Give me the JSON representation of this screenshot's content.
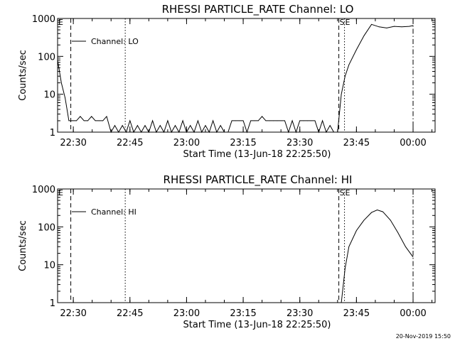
{
  "chart_data": [
    {
      "type": "line",
      "title": "RHESSI PARTICLE_RATE Channel: LO",
      "xlabel": "Start Time (13-Jun-18 22:25:50)",
      "ylabel": "Counts/sec",
      "y_scale": "log",
      "ylim": [
        1,
        1000
      ],
      "xlim": [
        "22:25:50",
        "00:05:50"
      ],
      "x_ticks": [
        "22:30",
        "22:45",
        "23:00",
        "23:15",
        "23:30",
        "23:45",
        "00:00"
      ],
      "y_ticks": [
        "1",
        "10",
        "100",
        "1000"
      ],
      "legend": {
        "entries": [
          "Channel: LO"
        ],
        "placement": "top-left"
      },
      "markers": [
        {
          "label": "E",
          "time": "22:25:50",
          "style": "solid"
        },
        {
          "label": "",
          "time": "22:29:20",
          "style": "dashed"
        },
        {
          "label": "",
          "time": "22:43:45",
          "style": "dotted"
        },
        {
          "label": "S",
          "time": "23:40:20",
          "style": "dashed"
        },
        {
          "label": "E",
          "time": "23:41:50",
          "style": "dotted"
        },
        {
          "label": "",
          "time": "00:00:00",
          "style": "dashdot"
        }
      ],
      "series": [
        {
          "name": "Channel: LO",
          "x": [
            "22:25:50",
            "22:26:50",
            "22:27:50",
            "22:28:50",
            "22:29:50",
            "22:30:50",
            "22:31:50",
            "22:32:50",
            "22:33:50",
            "22:34:50",
            "22:35:50",
            "22:36:50",
            "22:37:50",
            "22:38:50",
            "22:40:00",
            "22:41:00",
            "22:42:00",
            "22:43:00",
            "22:44:00",
            "22:45:00",
            "22:46:00",
            "22:47:00",
            "22:48:00",
            "22:49:00",
            "22:50:00",
            "22:51:00",
            "22:52:00",
            "22:53:00",
            "22:54:00",
            "22:55:00",
            "22:56:00",
            "22:57:00",
            "22:58:00",
            "22:59:00",
            "23:00:00",
            "23:01:00",
            "23:02:00",
            "23:03:00",
            "23:04:00",
            "23:05:00",
            "23:06:00",
            "23:07:00",
            "23:08:00",
            "23:09:00",
            "23:10:00",
            "23:11:00",
            "23:12:00",
            "23:13:00",
            "23:14:00",
            "23:15:00",
            "23:16:00",
            "23:17:00",
            "23:18:00",
            "23:19:00",
            "23:20:00",
            "23:21:00",
            "23:22:00",
            "23:23:00",
            "23:24:00",
            "23:25:00",
            "23:26:00",
            "23:27:00",
            "23:28:00",
            "23:29:00",
            "23:30:00",
            "23:31:00",
            "23:32:00",
            "23:33:00",
            "23:34:00",
            "23:35:00",
            "23:36:00",
            "23:37:00",
            "23:38:00",
            "23:39:00",
            "23:40:00",
            "23:41:00",
            "23:42:00",
            "23:43:00",
            "23:45:00",
            "23:47:00",
            "23:49:00",
            "23:51:00",
            "23:53:00",
            "23:55:00",
            "23:57:00",
            "23:59:00",
            "00:00:00"
          ],
          "values": [
            80,
            20,
            8,
            2,
            2,
            2,
            2.6,
            2,
            2,
            2.6,
            2,
            2,
            2,
            2.6,
            1,
            1.5,
            1,
            1.5,
            1,
            2,
            1,
            1.5,
            1,
            1.5,
            1,
            2,
            1,
            1.5,
            1,
            2,
            1,
            1.5,
            1,
            2,
            1,
            1.5,
            1,
            2,
            1,
            1.5,
            1,
            2,
            1,
            1.5,
            1,
            1,
            2,
            2,
            2,
            2,
            1,
            2,
            2,
            2,
            2.6,
            2,
            2,
            2,
            2,
            2,
            2,
            1,
            2,
            1,
            2,
            2,
            2,
            2,
            2,
            1,
            2,
            1,
            1.5,
            1,
            1,
            10,
            30,
            60,
            150,
            350,
            700,
            600,
            560,
            620,
            600,
            620,
            650
          ]
        }
      ]
    },
    {
      "type": "line",
      "title": "RHESSI PARTICLE_RATE Channel: HI",
      "xlabel": "Start Time (13-Jun-18 22:25:50)",
      "ylabel": "Counts/sec",
      "y_scale": "log",
      "ylim": [
        1,
        1000
      ],
      "xlim": [
        "22:25:50",
        "00:05:50"
      ],
      "x_ticks": [
        "22:30",
        "22:45",
        "23:00",
        "23:15",
        "23:30",
        "23:45",
        "00:00"
      ],
      "y_ticks": [
        "1",
        "10",
        "100",
        "1000"
      ],
      "legend": {
        "entries": [
          "Channel: HI"
        ],
        "placement": "top-left"
      },
      "markers": [
        {
          "label": "E",
          "time": "22:25:50",
          "style": "solid"
        },
        {
          "label": "",
          "time": "22:29:20",
          "style": "dashed"
        },
        {
          "label": "",
          "time": "22:43:45",
          "style": "dotted"
        },
        {
          "label": "S",
          "time": "23:40:20",
          "style": "dashed"
        },
        {
          "label": "E",
          "time": "23:41:50",
          "style": "dotted"
        },
        {
          "label": "",
          "time": "00:00:00",
          "style": "dashdot"
        }
      ],
      "series": [
        {
          "name": "Channel: HI",
          "x": [
            "23:41:00",
            "23:42:00",
            "23:43:00",
            "23:45:00",
            "23:47:00",
            "23:49:00",
            "23:50:30",
            "23:52:00",
            "23:54:00",
            "23:56:00",
            "23:58:00",
            "00:00:00"
          ],
          "values": [
            1,
            8,
            30,
            80,
            150,
            240,
            280,
            250,
            150,
            70,
            30,
            16
          ]
        }
      ]
    }
  ],
  "timestamp": "20-Nov-2019 15:50"
}
